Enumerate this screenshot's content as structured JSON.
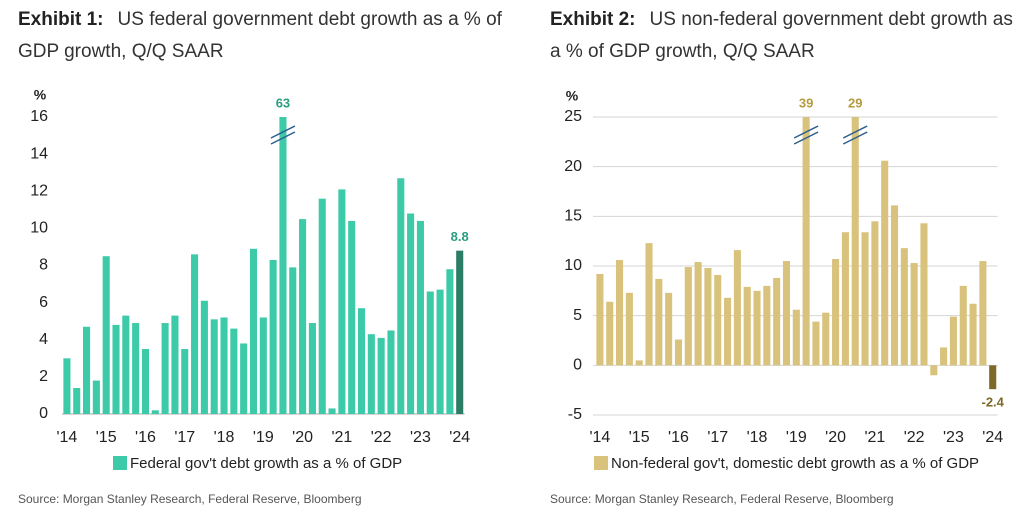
{
  "chart_data": [
    {
      "type": "bar",
      "label": "Exhibit 1:",
      "title": "US federal government debt growth as a % of GDP growth, Q/Q SAAR",
      "y_label": "%",
      "categories": [
        "'14",
        null,
        null,
        null,
        "'15",
        null,
        null,
        null,
        "'16",
        null,
        null,
        null,
        "'17",
        null,
        null,
        null,
        "'18",
        null,
        null,
        null,
        "'19",
        null,
        null,
        null,
        "'20",
        null,
        null,
        null,
        "'21",
        null,
        null,
        null,
        "'22",
        null,
        null,
        null,
        "'23",
        null,
        null,
        null,
        "'24"
      ],
      "series": [
        {
          "name": "Federal gov't debt growth as a % of GDP",
          "color": "#3ccaa8",
          "values": [
            3.0,
            1.4,
            4.7,
            1.8,
            8.5,
            4.8,
            5.3,
            4.9,
            3.5,
            0.2,
            4.9,
            5.3,
            3.5,
            8.6,
            6.1,
            5.1,
            5.2,
            4.6,
            3.8,
            8.9,
            5.2,
            8.3,
            63,
            7.9,
            10.5,
            4.9,
            11.6,
            0.3,
            12.1,
            10.4,
            5.7,
            4.3,
            4.1,
            4.5,
            12.7,
            10.8,
            10.4,
            6.6,
            6.7,
            7.8,
            8.8
          ],
          "colors": [
            "#3ccaa8",
            "#3ccaa8",
            "#3ccaa8",
            "#3ccaa8",
            "#3ccaa8",
            "#3ccaa8",
            "#3ccaa8",
            "#3ccaa8",
            "#3ccaa8",
            "#3ccaa8",
            "#3ccaa8",
            "#3ccaa8",
            "#3ccaa8",
            "#3ccaa8",
            "#3ccaa8",
            "#3ccaa8",
            "#3ccaa8",
            "#3ccaa8",
            "#3ccaa8",
            "#3ccaa8",
            "#3ccaa8",
            "#3ccaa8",
            "#3ccaa8",
            "#3ccaa8",
            "#3ccaa8",
            "#3ccaa8",
            "#3ccaa8",
            "#3ccaa8",
            "#3ccaa8",
            "#3ccaa8",
            "#3ccaa8",
            "#3ccaa8",
            "#3ccaa8",
            "#3ccaa8",
            "#3ccaa8",
            "#3ccaa8",
            "#3ccaa8",
            "#3ccaa8",
            "#3ccaa8",
            "#3ccaa8",
            "#2b7d66"
          ],
          "value_labels": [
            null,
            null,
            null,
            null,
            null,
            null,
            null,
            null,
            null,
            null,
            null,
            null,
            null,
            null,
            null,
            null,
            null,
            null,
            null,
            null,
            null,
            null,
            "63",
            null,
            null,
            null,
            null,
            null,
            null,
            null,
            null,
            null,
            null,
            null,
            null,
            null,
            null,
            null,
            null,
            null,
            "8.8"
          ]
        }
      ],
      "label_color": "#2a9e82",
      "ylim": [
        0,
        16
      ],
      "yticks": [
        0,
        2,
        4,
        6,
        8,
        10,
        12,
        14,
        16
      ],
      "grid": false,
      "source": "Source: Morgan Stanley Research, Federal Reserve, Bloomberg"
    },
    {
      "type": "bar",
      "label": "Exhibit 2:",
      "title": "US non-federal government debt growth as a % of GDP growth, Q/Q SAAR",
      "y_label": "%",
      "categories": [
        "'14",
        null,
        null,
        null,
        "'15",
        null,
        null,
        null,
        "'16",
        null,
        null,
        null,
        "'17",
        null,
        null,
        null,
        "'18",
        null,
        null,
        null,
        "'19",
        null,
        null,
        null,
        "'20",
        null,
        null,
        null,
        "'21",
        null,
        null,
        null,
        "'22",
        null,
        null,
        null,
        "'23",
        null,
        null,
        null,
        "'24"
      ],
      "series": [
        {
          "name": "Non-federal gov't, domestic debt growth as a % of GDP",
          "color": "#d9c27c",
          "values": [
            9.2,
            6.4,
            10.6,
            7.3,
            0.5,
            12.3,
            8.7,
            7.3,
            2.6,
            9.9,
            10.4,
            9.8,
            9.1,
            6.8,
            11.6,
            7.9,
            7.5,
            8.0,
            8.8,
            10.5,
            5.6,
            39,
            4.4,
            5.3,
            10.7,
            13.4,
            29,
            13.4,
            14.5,
            20.6,
            16.1,
            11.8,
            10.3,
            14.3,
            -1.0,
            1.8,
            4.9,
            8.0,
            6.2,
            10.5,
            -2.4
          ],
          "colors": [
            "#d9c27c",
            "#d9c27c",
            "#d9c27c",
            "#d9c27c",
            "#d9c27c",
            "#d9c27c",
            "#d9c27c",
            "#d9c27c",
            "#d9c27c",
            "#d9c27c",
            "#d9c27c",
            "#d9c27c",
            "#d9c27c",
            "#d9c27c",
            "#d9c27c",
            "#d9c27c",
            "#d9c27c",
            "#d9c27c",
            "#d9c27c",
            "#d9c27c",
            "#d9c27c",
            "#d9c27c",
            "#d9c27c",
            "#d9c27c",
            "#d9c27c",
            "#d9c27c",
            "#d9c27c",
            "#d9c27c",
            "#d9c27c",
            "#d9c27c",
            "#d9c27c",
            "#d9c27c",
            "#d9c27c",
            "#d9c27c",
            "#d9c27c",
            "#d9c27c",
            "#d9c27c",
            "#d9c27c",
            "#d9c27c",
            "#d9c27c",
            "#7d6a26"
          ],
          "value_labels": [
            null,
            null,
            null,
            null,
            null,
            null,
            null,
            null,
            null,
            null,
            null,
            null,
            null,
            null,
            null,
            null,
            null,
            null,
            null,
            null,
            null,
            "39",
            null,
            null,
            null,
            null,
            "29",
            null,
            null,
            null,
            null,
            null,
            null,
            null,
            null,
            null,
            null,
            null,
            null,
            null,
            "-2.4"
          ]
        }
      ],
      "label_color": "#b39b3e",
      "ylim": [
        -5,
        25
      ],
      "yticks": [
        -5,
        0,
        5,
        10,
        15,
        20,
        25
      ],
      "grid": true,
      "source": "Source: Morgan Stanley Research, Federal Reserve, Bloomberg"
    }
  ]
}
